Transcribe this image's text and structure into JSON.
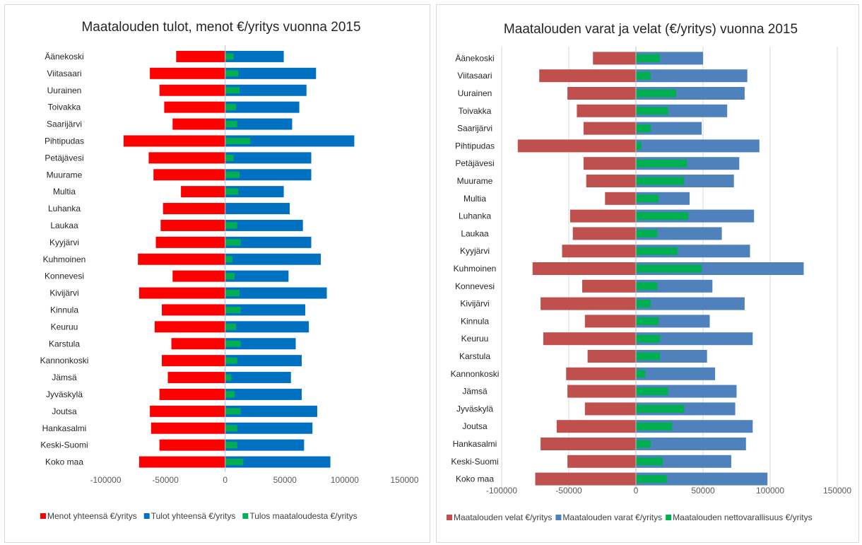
{
  "chart_data": [
    {
      "type": "bar",
      "orientation": "horizontal",
      "title": "Maatalouden tulot, menot €/yritys vuonna 2015",
      "categories": [
        "Äänekoski",
        "Viitasaari",
        "Uurainen",
        "Toivakka",
        "Saarijärvi",
        "Pihtipudas",
        "Petäjävesi",
        "Muurame",
        "Multia",
        "Luhanka",
        "Laukaa",
        "Kyyjärvi",
        "Kuhmoinen",
        "Konnevesi",
        "Kivijärvi",
        "Kinnula",
        "Keuruu",
        "Karstula",
        "Kannonkoski",
        "Jämsä",
        "Jyväskylä",
        "Joutsa",
        "Hankasalmi",
        "Keski-Suomi",
        "Koko maa"
      ],
      "series": [
        {
          "name": "Menot yhteensä €/yritys",
          "color": "#ff0000",
          "values": [
            -41000,
            -63000,
            -55000,
            -51000,
            -44000,
            -85000,
            -64000,
            -60000,
            -37000,
            -52000,
            -54000,
            -58000,
            -73000,
            -44000,
            -72000,
            -53000,
            -59000,
            -45000,
            -53000,
            -48000,
            -55000,
            -63000,
            -62000,
            -55000,
            -72000
          ]
        },
        {
          "name": "Tulot yhteensä €/yritys",
          "color": "#0070c0",
          "values": [
            49000,
            76000,
            68000,
            62000,
            56000,
            108000,
            72000,
            72000,
            49000,
            54000,
            65000,
            72000,
            80000,
            53000,
            85000,
            67000,
            70000,
            59000,
            64000,
            55000,
            64000,
            77000,
            73000,
            66000,
            88000
          ]
        },
        {
          "name": "Tulos maataloudesta €/yritys",
          "color": "#00b050",
          "values": [
            7000,
            11000,
            12000,
            9000,
            10000,
            21000,
            7000,
            12000,
            11000,
            0,
            10000,
            13000,
            6000,
            8000,
            12000,
            13000,
            9000,
            13000,
            10000,
            5000,
            8000,
            13000,
            10000,
            10000,
            15000
          ]
        }
      ],
      "xlim": [
        -100000,
        150000
      ],
      "xticks": [
        "-100000",
        "-50000",
        "0",
        "50000",
        "100000",
        "150000"
      ],
      "grid": false,
      "legend": "bottom"
    },
    {
      "type": "bar",
      "orientation": "horizontal",
      "title": "Maatalouden varat ja velat (€/yritys) vuonna 2015",
      "categories": [
        "Äänekoski",
        "Viitasaari",
        "Uurainen",
        "Toivakka",
        "Saarijärvi",
        "Pihtipudas",
        "Petäjävesi",
        "Muurame",
        "Multia",
        "Luhanka",
        "Laukaa",
        "Kyyjärvi",
        "Kuhmoinen",
        "Konnevesi",
        "Kivijärvi",
        "Kinnula",
        "Keuruu",
        "Karstula",
        "Kannonkoski",
        "Jämsä",
        "Jyväskylä",
        "Joutsa",
        "Hankasalmi",
        "Keski-Suomi",
        "Koko maa"
      ],
      "series": [
        {
          "name": "Maatalouden velat €/yritys",
          "color": "#c0504d",
          "values": [
            -32000,
            -72000,
            -51000,
            -44000,
            -39000,
            -88000,
            -39000,
            -37000,
            -23000,
            -49000,
            -47000,
            -55000,
            -77000,
            -40000,
            -71000,
            -38000,
            -69000,
            -36000,
            -52000,
            -51000,
            -38000,
            -59000,
            -71000,
            -51000,
            -75000
          ]
        },
        {
          "name": "Maatalouden varat €/yritys",
          "color": "#4f81bd",
          "values": [
            50000,
            83000,
            81000,
            68000,
            49000,
            92000,
            77000,
            73000,
            40000,
            88000,
            64000,
            85000,
            125000,
            57000,
            81000,
            55000,
            87000,
            53000,
            59000,
            75000,
            74000,
            87000,
            82000,
            71000,
            98000
          ]
        },
        {
          "name": "Maatalouden nettovarallisuus €/yritys",
          "color": "#00b050",
          "values": [
            18000,
            11000,
            30000,
            24000,
            11000,
            4000,
            38000,
            36000,
            17000,
            39000,
            16000,
            31000,
            49000,
            16000,
            11000,
            17000,
            18000,
            18000,
            7000,
            24000,
            36000,
            27000,
            11000,
            20000,
            23000
          ]
        }
      ],
      "xlim": [
        -100000,
        150000
      ],
      "xticks": [
        "-100000",
        "-50000",
        "0",
        "50000",
        "100000",
        "150000"
      ],
      "grid": true,
      "legend": "bottom"
    }
  ]
}
